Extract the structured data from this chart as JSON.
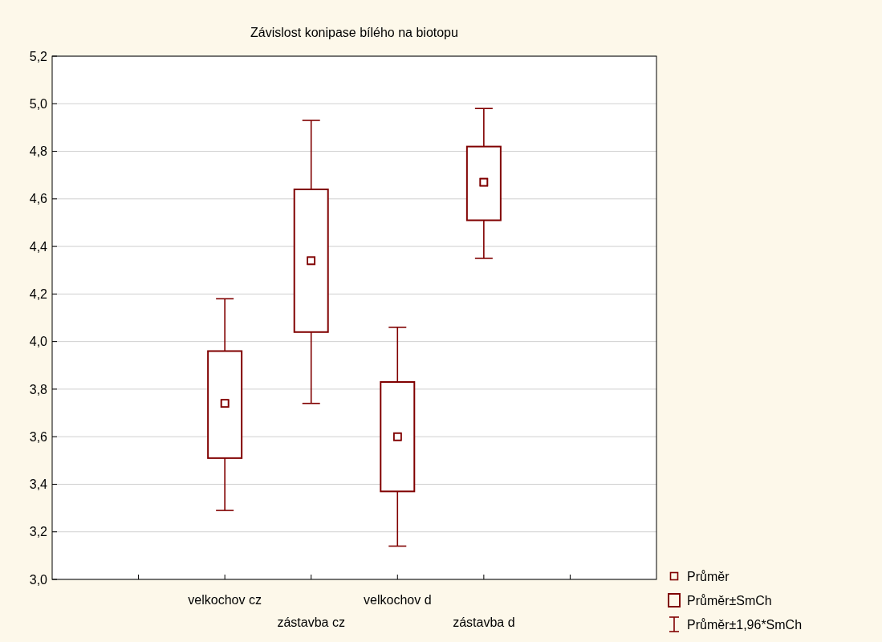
{
  "chart_data": {
    "type": "bar",
    "title": "Závislost konipase bílého na biotopu",
    "categories": [
      null,
      "velkochov cz",
      "zástavba cz",
      "velkochov d",
      "zástavba d",
      null
    ],
    "ylim": [
      3.0,
      5.2
    ],
    "yticks": [
      {
        "value": 3.0,
        "label": "3,0"
      },
      {
        "value": 3.2,
        "label": "3,2"
      },
      {
        "value": 3.4,
        "label": "3,4"
      },
      {
        "value": 3.6,
        "label": "3,6"
      },
      {
        "value": 3.8,
        "label": "3,8"
      },
      {
        "value": 4.0,
        "label": "4,0"
      },
      {
        "value": 4.2,
        "label": "4,2"
      },
      {
        "value": 4.4,
        "label": "4,4"
      },
      {
        "value": 4.6,
        "label": "4,6"
      },
      {
        "value": 4.8,
        "label": "4,8"
      },
      {
        "value": 5.0,
        "label": "5,0"
      },
      {
        "value": 5.2,
        "label": "5,2"
      }
    ],
    "grid": "y",
    "legend": "bottom right",
    "series": [
      {
        "name": "Průměr",
        "type": "scatter",
        "color": "#800000",
        "marker": "square",
        "values": [
          null,
          3.74,
          4.34,
          3.6,
          4.67,
          null
        ]
      },
      {
        "name": "Průměr±SmCh",
        "type": "bar",
        "color": "#800000",
        "base": [
          null,
          3.51,
          4.04,
          3.37,
          4.51,
          null
        ],
        "values": [
          null,
          0.45,
          0.6,
          0.46,
          0.31,
          null
        ]
      },
      {
        "name": "Průměr±1,96*SmCh",
        "type": "scatter",
        "color": "#800000",
        "marker": "square",
        "values": [
          null,
          3.74,
          4.34,
          3.6,
          4.67,
          null
        ],
        "errors": [
          null,
          [
            3.29,
            4.18
          ],
          [
            3.74,
            4.93
          ],
          [
            3.14,
            4.06
          ],
          [
            4.35,
            4.98
          ],
          null
        ]
      }
    ]
  }
}
